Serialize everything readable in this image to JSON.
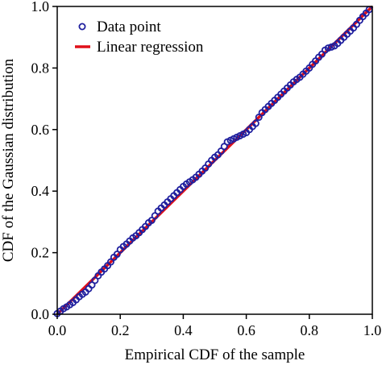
{
  "chart_data": {
    "type": "scatter",
    "xlabel": "Empirical CDF of the sample",
    "ylabel": "CDF of the Gaussian distribution",
    "xlim": [
      0,
      1
    ],
    "ylim": [
      0,
      1
    ],
    "xticks": [
      "0.0",
      "0.2",
      "0.4",
      "0.6",
      "0.8",
      "1.0"
    ],
    "yticks": [
      "0.0",
      "0.2",
      "0.4",
      "0.6",
      "0.8",
      "1.0"
    ],
    "grid": false,
    "legend_position": "top-left",
    "series": [
      {
        "name": "Data point",
        "kind": "scatter",
        "marker": "open-circle",
        "color": "#1f1f9e",
        "x": [
          0.0,
          0.01,
          0.02,
          0.03,
          0.04,
          0.05,
          0.06,
          0.07,
          0.08,
          0.09,
          0.1,
          0.11,
          0.12,
          0.13,
          0.14,
          0.15,
          0.16,
          0.17,
          0.18,
          0.19,
          0.2,
          0.21,
          0.22,
          0.23,
          0.24,
          0.25,
          0.26,
          0.27,
          0.28,
          0.29,
          0.3,
          0.31,
          0.32,
          0.33,
          0.34,
          0.35,
          0.36,
          0.37,
          0.38,
          0.39,
          0.4,
          0.41,
          0.42,
          0.43,
          0.44,
          0.45,
          0.46,
          0.47,
          0.48,
          0.49,
          0.5,
          0.51,
          0.52,
          0.53,
          0.54,
          0.55,
          0.56,
          0.57,
          0.58,
          0.59,
          0.6,
          0.61,
          0.62,
          0.63,
          0.64,
          0.65,
          0.66,
          0.67,
          0.68,
          0.69,
          0.7,
          0.71,
          0.72,
          0.73,
          0.74,
          0.75,
          0.76,
          0.77,
          0.78,
          0.79,
          0.8,
          0.81,
          0.82,
          0.83,
          0.84,
          0.85,
          0.86,
          0.87,
          0.88,
          0.89,
          0.9,
          0.91,
          0.92,
          0.93,
          0.94,
          0.95,
          0.96,
          0.97,
          0.98,
          0.99
        ],
        "y": [
          0.002,
          0.01,
          0.018,
          0.024,
          0.031,
          0.038,
          0.047,
          0.057,
          0.065,
          0.072,
          0.083,
          0.095,
          0.11,
          0.125,
          0.137,
          0.147,
          0.158,
          0.17,
          0.185,
          0.195,
          0.21,
          0.22,
          0.228,
          0.238,
          0.248,
          0.255,
          0.265,
          0.275,
          0.285,
          0.297,
          0.305,
          0.32,
          0.335,
          0.345,
          0.355,
          0.365,
          0.375,
          0.385,
          0.395,
          0.405,
          0.415,
          0.423,
          0.43,
          0.437,
          0.445,
          0.455,
          0.465,
          0.475,
          0.488,
          0.5,
          0.51,
          0.518,
          0.53,
          0.545,
          0.56,
          0.565,
          0.57,
          0.575,
          0.58,
          0.585,
          0.59,
          0.6,
          0.61,
          0.62,
          0.64,
          0.655,
          0.665,
          0.675,
          0.685,
          0.695,
          0.705,
          0.715,
          0.725,
          0.735,
          0.745,
          0.755,
          0.763,
          0.77,
          0.78,
          0.79,
          0.8,
          0.812,
          0.823,
          0.835,
          0.845,
          0.858,
          0.865,
          0.868,
          0.872,
          0.88,
          0.89,
          0.9,
          0.91,
          0.92,
          0.93,
          0.942,
          0.955,
          0.967,
          0.978,
          0.99
        ]
      },
      {
        "name": "Linear regression",
        "kind": "line",
        "color": "#e0101a",
        "x": [
          0,
          1
        ],
        "y": [
          0,
          1
        ]
      }
    ]
  }
}
